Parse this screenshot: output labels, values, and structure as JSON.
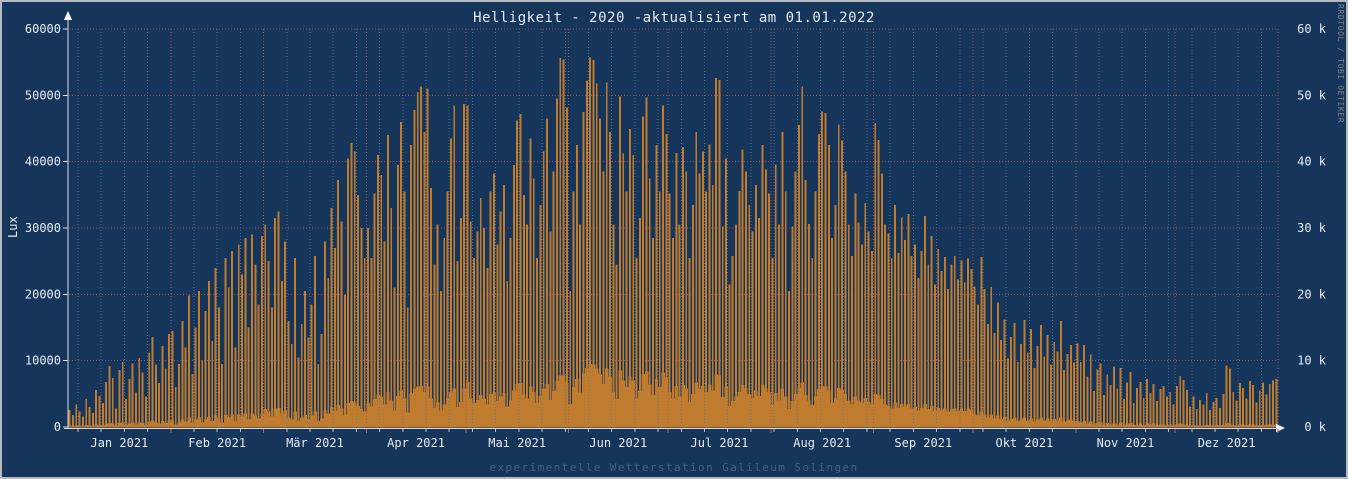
{
  "title": "Helligkeit - 2020 -aktualisiert am 01.01.2022",
  "footer": "experimentelle Wetterstation Galileum Solingen",
  "watermark": "RRDTOOL / TOBI OETIKER",
  "colors": {
    "background": "#16355a",
    "bar": "#c07c2e",
    "grid_major": "#aa5560",
    "grid_minor": "#5f7387",
    "axis": "#d5dbe0",
    "text": "#e6ecf1",
    "footer_text": "#45607c",
    "watermark_text": "#78838d",
    "frame_border": "#b4bac0"
  },
  "chart_data": {
    "type": "bar",
    "title": "Helligkeit - 2020 -aktualisiert am 01.01.2022",
    "xlabel": "",
    "ylabel": "Lux",
    "ylim": [
      0,
      60000
    ],
    "grid": {
      "horizontal_major_step": 10000,
      "vertical_minor": "weekly",
      "vertical_major": "monthly",
      "style": "dotted"
    },
    "legend_position": "none",
    "y_axis": {
      "left_labels": [
        "60000",
        "50000",
        "40000",
        "30000",
        "20000",
        "10000",
        "0"
      ],
      "right_labels": [
        "60 k",
        "50 k",
        "40 k",
        "30 k",
        "20 k",
        "10 k",
        "0 k"
      ],
      "values": [
        60000,
        50000,
        40000,
        30000,
        20000,
        10000,
        0
      ]
    },
    "months": [
      {
        "label": "Jan 2021",
        "days": 31
      },
      {
        "label": "Feb 2021",
        "days": 28
      },
      {
        "label": "Mär 2021",
        "days": 31
      },
      {
        "label": "Apr 2021",
        "days": 30
      },
      {
        "label": "Mai 2021",
        "days": 31
      },
      {
        "label": "Jun 2021",
        "days": 30
      },
      {
        "label": "Jul 2021",
        "days": 31
      },
      {
        "label": "Aug 2021",
        "days": 31
      },
      {
        "label": "Sep 2021",
        "days": 30
      },
      {
        "label": "Okt 2021",
        "days": 31
      },
      {
        "label": "Nov 2021",
        "days": 30
      },
      {
        "label": "Dez 2021",
        "days": 31
      }
    ],
    "series": [
      {
        "name": "daily_max_lux_spikes",
        "values_by_month": [
          [
            2600,
            1800,
            3400,
            2300,
            1600,
            4200,
            3000,
            2100,
            5600,
            4700,
            3600,
            6800,
            9200,
            7400,
            2800,
            8600,
            9800,
            4200,
            7200,
            9600,
            5200,
            10400,
            8200,
            4600,
            11200,
            13600,
            9400,
            6600,
            12200,
            8800,
            14000
          ],
          [
            14500,
            6000,
            9500,
            16000,
            12000,
            19800,
            8000,
            15000,
            20500,
            10000,
            17500,
            22000,
            13000,
            24000,
            18000,
            9500,
            25500,
            21000,
            26500,
            12000,
            27500,
            23000,
            28500,
            15000,
            29000,
            24500,
            18500,
            28800
          ],
          [
            30500,
            25000,
            18000,
            31500,
            32500,
            22000,
            28000,
            16000,
            12500,
            25500,
            10500,
            15500,
            20500,
            13500,
            18500,
            25800,
            9500,
            14000,
            28000,
            22500,
            33000,
            27000,
            37200,
            31000,
            20000,
            40500,
            42800,
            41500,
            35000,
            30000,
            25500
          ],
          [
            30000,
            25500,
            35200,
            41000,
            38000,
            28000,
            44000,
            33000,
            21000,
            39500,
            46000,
            35500,
            18000,
            42500,
            47800,
            50500,
            51300,
            44500,
            51000,
            36000,
            24500,
            30500,
            20500,
            28500,
            35500,
            43500,
            48500,
            25000,
            31500,
            48700
          ],
          [
            48500,
            31000,
            25500,
            29500,
            34500,
            30000,
            24000,
            35500,
            38200,
            27500,
            32500,
            36500,
            22000,
            28500,
            39500,
            46200,
            47200,
            35000,
            30500,
            43500,
            37500,
            25500,
            33500,
            41500,
            46500,
            29500,
            38500,
            49500,
            55600,
            55400,
            48200
          ],
          [
            20500,
            35500,
            42500,
            30500,
            47500,
            52200,
            55700,
            55300,
            51800,
            46500,
            38500,
            51900,
            44500,
            30500,
            24500,
            49800,
            41200,
            35500,
            44900,
            41000,
            25500,
            31500,
            46800,
            49700,
            37500,
            28500,
            42500,
            35500,
            48500,
            44200
          ],
          [
            35200,
            28500,
            41300,
            30500,
            42200,
            38500,
            25500,
            33500,
            44500,
            38200,
            41500,
            35500,
            42600,
            36500,
            52600,
            52300,
            30200,
            40500,
            21500,
            25800,
            30500,
            35600,
            41800,
            38500,
            33500,
            29500,
            36500,
            31500,
            42500,
            38800,
            35200
          ],
          [
            25500,
            39600,
            30500,
            44500,
            35500,
            20500,
            30200,
            38500,
            45500,
            51300,
            37200,
            30600,
            25500,
            35500,
            44200,
            47600,
            47300,
            42500,
            28500,
            33500,
            45600,
            43200,
            38500,
            30500,
            25800,
            35200,
            30800,
            27500,
            33800,
            29500,
            26500
          ],
          [
            45800,
            43300,
            38200,
            30500,
            29200,
            25500,
            33500,
            26200,
            31600,
            28200,
            32100,
            25800,
            27500,
            22500,
            26500,
            31800,
            24500,
            28800,
            21500,
            26800,
            23500,
            25600,
            20800,
            24500,
            25800,
            22200,
            25100,
            21800,
            25400,
            23800
          ],
          [
            21200,
            18500,
            25600,
            20800,
            15500,
            21100,
            14200,
            18800,
            13100,
            16200,
            10300,
            13600,
            15700,
            9800,
            12500,
            16100,
            11200,
            14800,
            8900,
            12200,
            15400,
            10600,
            13900,
            9400,
            12800,
            11400,
            16000,
            8600,
            11000,
            12400,
            9700
          ],
          [
            12600,
            9800,
            12400,
            7600,
            10900,
            5400,
            8700,
            9600,
            4800,
            7900,
            6300,
            9100,
            5800,
            8900,
            4200,
            6700,
            8300,
            3600,
            5900,
            6800,
            4400,
            7200,
            5100,
            6500,
            3900,
            5700,
            6200,
            4600,
            5300,
            3400
          ],
          [
            6200,
            7700,
            7100,
            5600,
            3100,
            4600,
            2700,
            4100,
            3400,
            5100,
            2600,
            3800,
            4400,
            2900,
            5000,
            9300,
            8800,
            5300,
            4000,
            6600,
            5900,
            4300,
            6900,
            6300,
            3700,
            5500,
            6700,
            4900,
            6500,
            7000,
            7200
          ]
        ]
      },
      {
        "name": "daily_mean_lux_area",
        "values_by_month": [
          [
            200,
            100,
            200,
            200,
            100,
            300,
            200,
            100,
            400,
            300,
            300,
            500,
            600,
            500,
            200,
            600,
            700,
            300,
            500,
            700,
            400,
            700,
            600,
            300,
            800,
            1000,
            700,
            500,
            900,
            600,
            1000
          ],
          [
            1000,
            400,
            700,
            1100,
            800,
            1400,
            600,
            1100,
            1400,
            700,
            1200,
            1500,
            900,
            1700,
            1300,
            700,
            1800,
            1500,
            1900,
            800,
            1900,
            1600,
            2000,
            1100,
            2000,
            1700,
            1300,
            2000
          ],
          [
            2700,
            2300,
            1600,
            2800,
            2900,
            2000,
            2500,
            1400,
            1100,
            2300,
            900,
            1400,
            1800,
            1200,
            1700,
            2300,
            900,
            1300,
            2500,
            2000,
            3000,
            2400,
            3300,
            2800,
            1800,
            3600,
            3900,
            3700,
            3200,
            2700,
            2300
          ],
          [
            3600,
            3100,
            4200,
            4900,
            4600,
            3400,
            5300,
            4000,
            2500,
            4700,
            5500,
            4300,
            2200,
            5100,
            5700,
            6100,
            6200,
            5300,
            6100,
            4300,
            2900,
            3700,
            2500,
            3400,
            4300,
            5200,
            5800,
            3000,
            3800,
            5800
          ],
          [
            6800,
            4300,
            3600,
            4100,
            4800,
            4200,
            3400,
            5000,
            5300,
            3900,
            4600,
            5100,
            3100,
            4000,
            5500,
            6500,
            6600,
            4900,
            4300,
            6100,
            5300,
            3600,
            4700,
            5800,
            6500,
            4100,
            5400,
            6900,
            7800,
            7800,
            6700
          ],
          [
            3500,
            6000,
            7200,
            5200,
            8100,
            8900,
            9500,
            9400,
            8800,
            7900,
            6500,
            8800,
            7600,
            5200,
            4200,
            8500,
            7000,
            6000,
            7600,
            7000,
            4300,
            5400,
            8000,
            8400,
            6400,
            4800,
            7200,
            6000,
            8200,
            7500
          ],
          [
            5300,
            4300,
            6200,
            4600,
            6300,
            5800,
            3800,
            5000,
            6700,
            5700,
            6200,
            5300,
            6400,
            5500,
            7900,
            7800,
            4500,
            6100,
            3200,
            3900,
            4600,
            5300,
            6300,
            5800,
            5000,
            4400,
            5500,
            4700,
            6400,
            5800,
            5300
          ],
          [
            3300,
            5100,
            4000,
            5800,
            4600,
            2700,
            3900,
            5000,
            5900,
            6700,
            4800,
            4000,
            3300,
            4600,
            5700,
            6200,
            6100,
            5500,
            3700,
            4400,
            5900,
            5600,
            5000,
            4000,
            3400,
            4600,
            4000,
            3600,
            4400,
            3800,
            3400
          ],
          [
            5000,
            4800,
            4200,
            3400,
            3200,
            2800,
            3700,
            2900,
            3500,
            3100,
            3500,
            2800,
            3000,
            2500,
            2900,
            3500,
            2700,
            3200,
            2400,
            2900,
            2600,
            2800,
            2300,
            2700,
            2800,
            2400,
            2800,
            2400,
            2800,
            2600
          ],
          [
            1900,
            1700,
            2300,
            1900,
            1400,
            1900,
            1300,
            1700,
            1200,
            1500,
            900,
            1200,
            1400,
            900,
            1100,
            1400,
            1000,
            1300,
            800,
            1100,
            1400,
            1000,
            1300,
            800,
            1200,
            1000,
            1400,
            800,
            1000,
            1100,
            900
          ],
          [
            900,
            700,
            900,
            500,
            800,
            400,
            600,
            700,
            300,
            600,
            400,
            600,
            400,
            600,
            300,
            500,
            600,
            300,
            400,
            500,
            300,
            500,
            400,
            500,
            300,
            400,
            400,
            300,
            400,
            200
          ],
          [
            400,
            500,
            400,
            300,
            200,
            300,
            200,
            200,
            200,
            300,
            200,
            200,
            300,
            200,
            300,
            600,
            500,
            300,
            200,
            400,
            400,
            300,
            400,
            400,
            200,
            300,
            400,
            300,
            400,
            400,
            400
          ]
        ]
      }
    ]
  }
}
